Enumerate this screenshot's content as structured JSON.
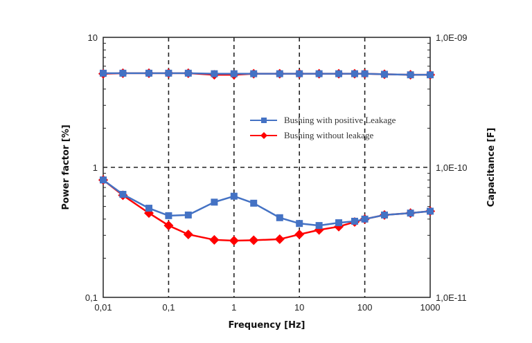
{
  "chart_data": {
    "type": "line",
    "title": "",
    "xlabel": "Frequency [Hz]",
    "ylabel": "Power factor [%]",
    "y2label": "Capacitance [F]",
    "xscale": "log",
    "yscale": "log",
    "xlim": [
      0.01,
      1000
    ],
    "ylim": [
      0.1,
      10
    ],
    "xticks": [
      "0,01",
      "0,1",
      "1",
      "10",
      "100",
      "1000"
    ],
    "yticks": [
      "0,1",
      "1",
      "10"
    ],
    "y2ticks": [
      "1,0E-11",
      "1,0E-10",
      "1,0E-09"
    ],
    "grid": "dashed at decades",
    "legend_position": "center-right",
    "x": [
      0.01,
      0.02,
      0.05,
      0.1,
      0.2,
      0.5,
      1,
      2,
      5,
      10,
      20,
      40,
      70,
      100,
      200,
      500,
      1000
    ],
    "series": [
      {
        "name": "Bushing with positive Leakage",
        "color": "#4472C4",
        "marker": "square",
        "pf": [
          0.8,
          0.62,
          0.485,
          0.425,
          0.43,
          0.54,
          0.6,
          0.53,
          0.41,
          0.37,
          0.357,
          0.375,
          0.385,
          0.4,
          0.43,
          0.445,
          0.46
        ],
        "capacitance_axis_values": [
          5.3,
          5.3,
          5.3,
          5.3,
          5.3,
          5.25,
          5.25,
          5.25,
          5.25,
          5.25,
          5.25,
          5.25,
          5.25,
          5.25,
          5.2,
          5.15,
          5.15
        ]
      },
      {
        "name": "Bushing without leakage",
        "color": "#FF0000",
        "marker": "diamond",
        "pf": [
          0.8,
          0.61,
          0.445,
          0.357,
          0.305,
          0.277,
          0.273,
          0.275,
          0.28,
          0.305,
          0.33,
          0.35,
          0.38,
          0.4,
          0.43,
          0.445,
          0.46
        ],
        "capacitance_axis_values": [
          5.25,
          5.3,
          5.3,
          5.3,
          5.3,
          5.15,
          5.15,
          5.25,
          5.25,
          5.25,
          5.25,
          5.25,
          5.25,
          5.25,
          5.2,
          5.15,
          5.15
        ]
      }
    ]
  }
}
